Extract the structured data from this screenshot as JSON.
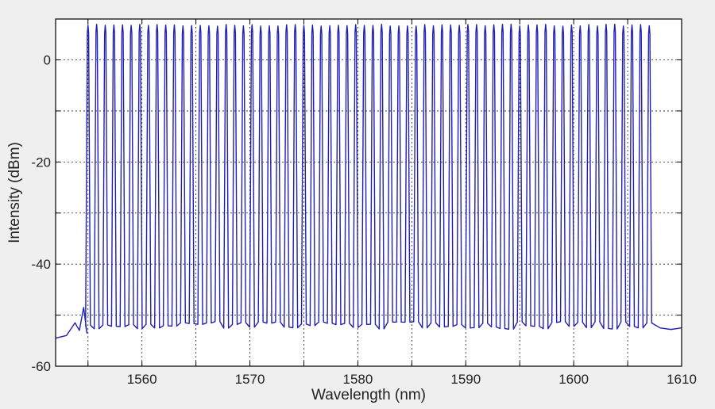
{
  "chart_data": {
    "type": "line",
    "title": "",
    "xlabel": "Wavelength (nm)",
    "ylabel": "Intensity (dBm)",
    "xlim": [
      1552,
      1610
    ],
    "ylim": [
      -60,
      8
    ],
    "x_ticks": [
      1560,
      1570,
      1580,
      1590,
      1600,
      1610
    ],
    "y_ticks": [
      0,
      -20,
      -40,
      -60
    ],
    "x_tick_labels": [
      "1560",
      "1570",
      "1580",
      "1590",
      "1600",
      "1610"
    ],
    "y_tick_labels": [
      "0",
      "-20",
      "-40",
      "-60"
    ],
    "x_grid": [
      1555,
      1560,
      1565,
      1570,
      1575,
      1580,
      1585,
      1590,
      1595,
      1600,
      1605,
      1610
    ],
    "y_grid": [
      0,
      -10,
      -20,
      -30,
      -40,
      -50
    ],
    "grid": true,
    "line_color": "#1f1fb4",
    "series": [
      {
        "peaks_start_nm": 1555.0,
        "peaks_end_nm": 1607.5,
        "peak_spacing_nm": 0.8,
        "peak_level_dBm": 7,
        "floor_level_dBm": -52,
        "left_noise": [
          [
            1552.0,
            -54.5
          ],
          [
            1553.0,
            -54.0
          ],
          [
            1553.8,
            -51.5
          ],
          [
            1554.2,
            -53.0
          ],
          [
            1554.6,
            -48.5
          ],
          [
            1554.9,
            -53.5
          ]
        ],
        "right_noise": [
          [
            1608.0,
            -52.5
          ],
          [
            1609.0,
            -52.8
          ],
          [
            1610.0,
            -52.5
          ]
        ]
      }
    ]
  }
}
